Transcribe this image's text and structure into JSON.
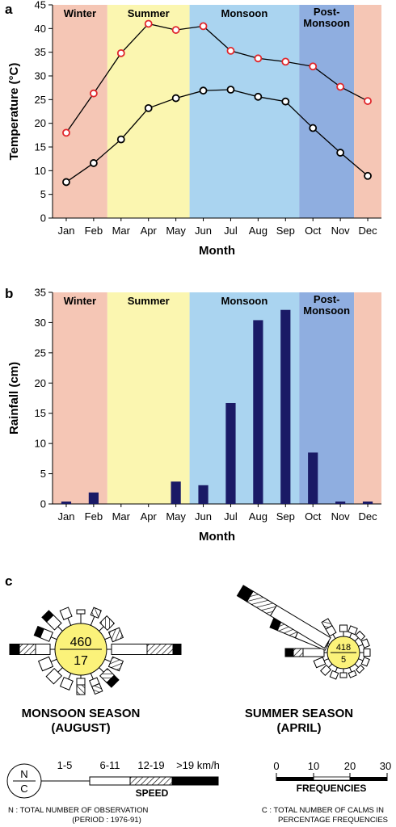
{
  "colors": {
    "winter": "#f5c6b5",
    "summer": "#fbf6b0",
    "monsoon": "#aad4f0",
    "post_monsoon": "#8faee0",
    "max_marker": "#e0262b",
    "bar": "#1a1a66",
    "calm_circle": "#fbf27a"
  },
  "panels": {
    "a": "a",
    "b": "b",
    "c": "c"
  },
  "seasons": {
    "winter": "Winter",
    "summer": "Summer",
    "monsoon": "Monsoon",
    "post_monsoon_1": "Post-",
    "post_monsoon_2": "Monsoon"
  },
  "chart_data": [
    {
      "type": "line",
      "ylabel": "Temperature (°C)",
      "xlabel": "Month",
      "ylim": [
        0,
        45
      ],
      "yticks": [
        0,
        5,
        10,
        15,
        20,
        25,
        30,
        35,
        40,
        45
      ],
      "categories": [
        "Jan",
        "Feb",
        "Mar",
        "Apr",
        "May",
        "Jun",
        "Jul",
        "Aug",
        "Sep",
        "Oct",
        "Nov",
        "Dec"
      ],
      "series": [
        {
          "values": [
            18,
            26.3,
            34.8,
            41,
            39.7,
            40.5,
            35.3,
            33.7,
            33,
            32,
            27.7,
            24.7
          ]
        },
        {
          "values": [
            7.6,
            11.6,
            16.6,
            23.2,
            25.3,
            26.9,
            27.1,
            25.6,
            24.6,
            19,
            13.8,
            8.9
          ]
        }
      ]
    },
    {
      "type": "bar",
      "ylabel": "Rainfall (cm)",
      "xlabel": "Month",
      "ylim": [
        0,
        35
      ],
      "yticks": [
        0,
        5,
        10,
        15,
        20,
        25,
        30,
        35
      ],
      "categories": [
        "Jan",
        "Feb",
        "Mar",
        "Apr",
        "May",
        "Jun",
        "Jul",
        "Aug",
        "Sep",
        "Oct",
        "Nov",
        "Dec"
      ],
      "values": [
        0.4,
        1.9,
        0,
        0,
        3.7,
        3.1,
        16.7,
        30.4,
        32.1,
        8.5,
        0.4,
        0.4
      ]
    }
  ],
  "wind_roses": {
    "monsoon": {
      "n": "460",
      "c": "17",
      "caption_1": "MONSOON SEASON",
      "caption_2": "(AUGUST)"
    },
    "summer": {
      "n": "418",
      "c": "5",
      "caption_1": "SUMMER SEASON",
      "caption_2": "(APRIL)"
    }
  },
  "legend": {
    "n_symbol": "N",
    "c_symbol": "C",
    "speed_1": "1-5",
    "speed_2": "6-11",
    "speed_3": "12-19",
    "speed_4": ">19 km/h",
    "speed_title": "SPEED",
    "freq_ticks": [
      "0",
      "10",
      "20",
      "30"
    ],
    "freq_title": "FREQUENCIES",
    "note_n_1": "N : TOTAL NUMBER OF OBSERVATION",
    "note_n_2": "(PERIOD : 1976-91)",
    "note_c_1": "C : TOTAL NUMBER OF CALMS IN",
    "note_c_2": "PERCENTAGE FREQUENCIES"
  }
}
